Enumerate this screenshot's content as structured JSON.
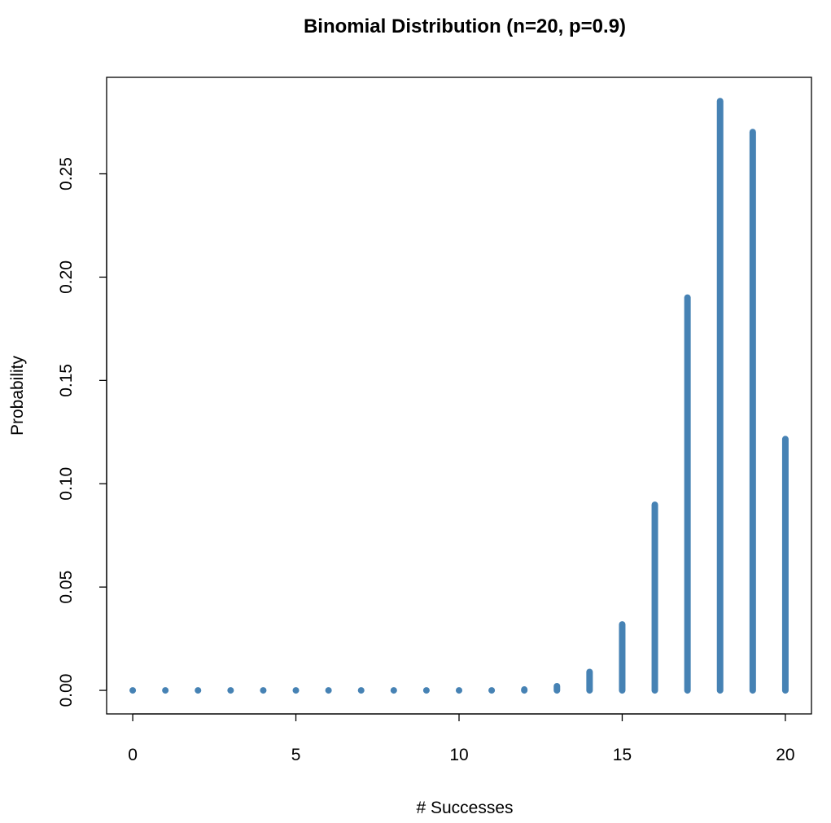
{
  "chart_data": {
    "type": "bar",
    "title": "Binomial Distribution (n=20, p=0.9)",
    "xlabel": "# Successes",
    "ylabel": "Probability",
    "x": [
      0,
      1,
      2,
      3,
      4,
      5,
      6,
      7,
      8,
      9,
      10,
      11,
      12,
      13,
      14,
      15,
      16,
      17,
      18,
      19,
      20
    ],
    "values": [
      0,
      0,
      0,
      0,
      0,
      0,
      0,
      0,
      0,
      0,
      0,
      0,
      0.0004,
      0.002,
      0.0089,
      0.0319,
      0.0898,
      0.1901,
      0.2852,
      0.2702,
      0.1216
    ],
    "xlim": [
      -0.8,
      20.8
    ],
    "ylim": [
      -0.0114,
      0.2967
    ],
    "xticks": [
      "0",
      "5",
      "10",
      "15",
      "20"
    ],
    "yticks": [
      "0.00",
      "0.05",
      "0.10",
      "0.15",
      "0.20",
      "0.25"
    ],
    "grid": false,
    "color": "#4682b4"
  }
}
